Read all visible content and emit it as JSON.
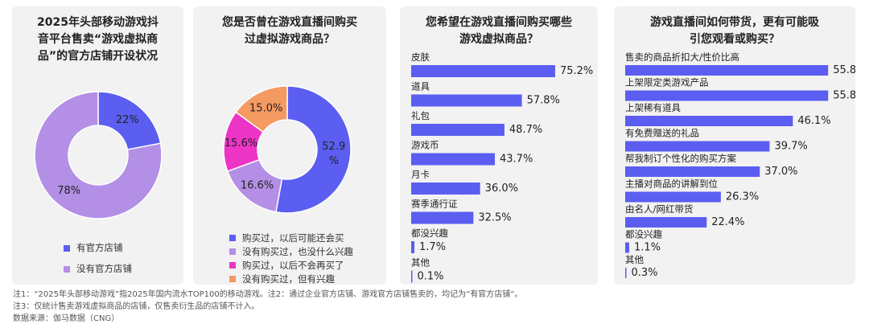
{
  "colors": {
    "blue": "#5b5ef0",
    "lavender": "#b38fe6",
    "magenta": "#ec34c6",
    "orange": "#f59a61"
  },
  "panel1": {
    "title": "2025年头部移动游戏抖\n音平台售卖“游戏虚拟商\n品”的官方店铺开设状况",
    "chart_data": {
      "type": "pie",
      "series": [
        {
          "name": "有官方店铺",
          "value": 22,
          "label": "22%",
          "color": "#5b5ef0"
        },
        {
          "name": "没有官方店铺",
          "value": 78,
          "label": "78%",
          "color": "#b38fe6"
        }
      ]
    }
  },
  "panel2": {
    "title": "您是否曾在游戏直播间购买\n过虚拟游戏商品？",
    "chart_data": {
      "type": "pie",
      "series": [
        {
          "name": "购买过，以后可能还会买",
          "value": 52.9,
          "label": "52.9\n%",
          "color": "#5b5ef0"
        },
        {
          "name": "没有购买过，也没什么兴趣",
          "value": 16.6,
          "label": "16.6%",
          "color": "#b38fe6"
        },
        {
          "name": "购买过，以后不会再买了",
          "value": 15.6,
          "label": "15.6%",
          "color": "#ec34c6"
        },
        {
          "name": "没有购买过，但有兴趣",
          "value": 15.0,
          "label": "15.0%",
          "color": "#f59a61"
        }
      ]
    }
  },
  "panel3": {
    "title": "您希望在游戏直播间购买哪些\n游戏虚拟商品？",
    "chart_data": {
      "type": "bar",
      "orientation": "horizontal",
      "xlim": [
        0,
        100
      ],
      "categories": [
        "皮肤",
        "道具",
        "礼包",
        "游戏币",
        "月卡",
        "赛季通行证",
        "都没兴趣",
        "其他"
      ],
      "values": [
        75.2,
        57.8,
        48.7,
        43.7,
        36.0,
        32.5,
        1.7,
        0.1
      ],
      "labels": [
        "75.2%",
        "57.8%",
        "48.7%",
        "43.7%",
        "36.0%",
        "32.5%",
        "1.7%",
        "0.1%"
      ]
    }
  },
  "panel4": {
    "title": "游戏直播间如何带货，更有可能吸\n引您观看或购买？",
    "chart_data": {
      "type": "bar",
      "orientation": "horizontal",
      "xlim": [
        0,
        100
      ],
      "categories": [
        "售卖的商品折扣大/性价比高",
        "上架限定类游戏产品",
        "上架稀有道具",
        "有免费赠送的礼品",
        "帮我制订个性化的购买方案",
        "主播对商品的讲解到位",
        "由名人/网红带货",
        "都没兴趣",
        "其他"
      ],
      "values": [
        55.8,
        55.8,
        46.1,
        39.7,
        37.0,
        26.3,
        22.4,
        1.1,
        0.3
      ],
      "labels": [
        "55.8%",
        "55.8%",
        "46.1%",
        "39.7%",
        "37.0%",
        "26.3%",
        "22.4%",
        "1.1%",
        "0.3%"
      ]
    }
  },
  "notes": [
    "注1：“2025年头部移动游戏”指2025年国内流水TOP100的移动游戏。注2：通过企业官方店铺、游戏官方店铺售卖的，均记为“有官方店铺”。",
    "注3：仅统计售卖游戏虚拟商品的店铺，仅售卖衍生品的店铺不计入。",
    "数据来源：伽马数据（CNG）"
  ]
}
